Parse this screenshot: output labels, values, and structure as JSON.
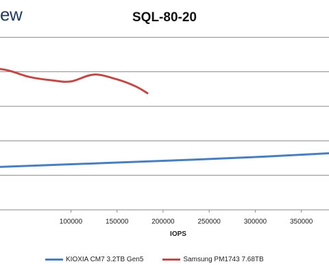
{
  "brand_text": "ew",
  "chart_data": {
    "type": "line",
    "title": "SQL-80-20",
    "xlabel": "IOPS",
    "ylabel": "",
    "xlim": [
      0,
      380000
    ],
    "x_ticks": [
      100000,
      150000,
      200000,
      250000,
      300000,
      350000
    ],
    "x_tick_labels": [
      "100000",
      "150000",
      "200000",
      "250000",
      "300000",
      "350000"
    ],
    "ylim": [
      0,
      6
    ],
    "y_gridlines": [
      1,
      2,
      3,
      4,
      5
    ],
    "grid": true,
    "legend_position": "bottom",
    "series": [
      {
        "name": "KIOXIA CM7 3.2TB Gen5",
        "color": "#4a7ebf",
        "x": [
          0,
          100000,
          200000,
          300000,
          380000
        ],
        "y": [
          1.22,
          1.32,
          1.42,
          1.53,
          1.64
        ]
      },
      {
        "name": "Samsung PM1743 7.68TB",
        "color": "#be4b48",
        "x": [
          0,
          30000,
          55000,
          80000,
          100000,
          125000,
          150000,
          170000,
          183000
        ],
        "y": [
          4.15,
          4.05,
          3.85,
          3.75,
          3.72,
          3.92,
          3.78,
          3.58,
          3.38
        ]
      }
    ]
  }
}
